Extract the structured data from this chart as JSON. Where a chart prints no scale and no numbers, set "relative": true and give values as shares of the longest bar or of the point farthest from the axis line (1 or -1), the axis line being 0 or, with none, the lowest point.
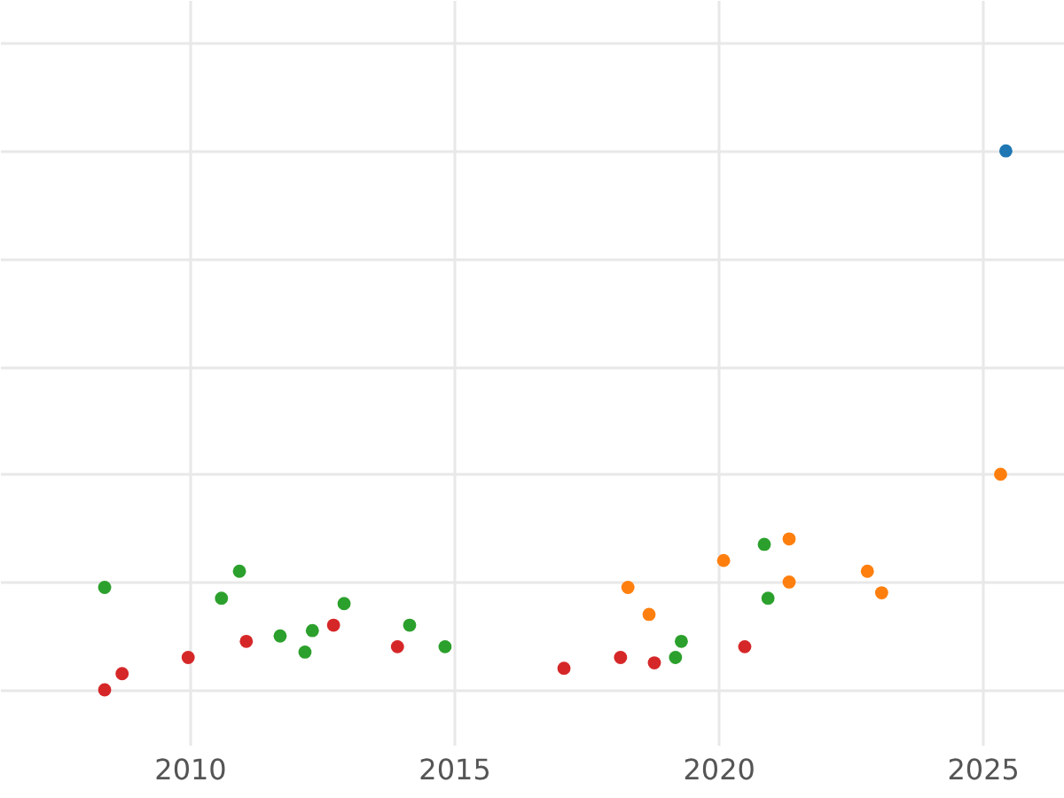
{
  "chart_data": {
    "type": "scatter",
    "relative": true,
    "grid": true,
    "marker": "circle",
    "xlim": [
      2006.41,
      2026.54
    ],
    "xticks": [
      2010,
      2015,
      2020,
      2025
    ],
    "series": [
      {
        "color": "#1f77b4",
        "x": [
          2025.44
        ],
        "values": [
          1.0
        ]
      },
      {
        "color": "#ff7f0e",
        "x": [
          2025.34,
          2018.29,
          2018.69,
          2020.1,
          2021.34,
          2021.34,
          2022.82,
          2023.09
        ],
        "values": [
          0.4,
          0.19,
          0.14,
          0.24,
          0.28,
          0.2,
          0.22,
          0.18
        ]
      },
      {
        "color": "#2ca02c",
        "x": [
          2008.39,
          2010.6,
          2010.94,
          2011.71,
          2012.18,
          2012.32,
          2012.92,
          2014.16,
          2014.83,
          2019.3,
          2019.19,
          2020.87,
          2020.94
        ],
        "values": [
          0.19,
          0.17,
          0.22,
          0.1,
          0.07,
          0.11,
          0.16,
          0.12,
          0.08,
          0.09,
          0.06,
          0.27,
          0.17
        ]
      },
      {
        "color": "#d62728",
        "x": [
          2008.39,
          2008.72,
          2009.97,
          2011.07,
          2012.72,
          2013.93,
          2017.08,
          2018.15,
          2018.79,
          2020.5
        ],
        "values": [
          0,
          0.03,
          0.06,
          0.09,
          0.12,
          0.08,
          0.04,
          0.06,
          0.05,
          0.08
        ]
      }
    ]
  }
}
